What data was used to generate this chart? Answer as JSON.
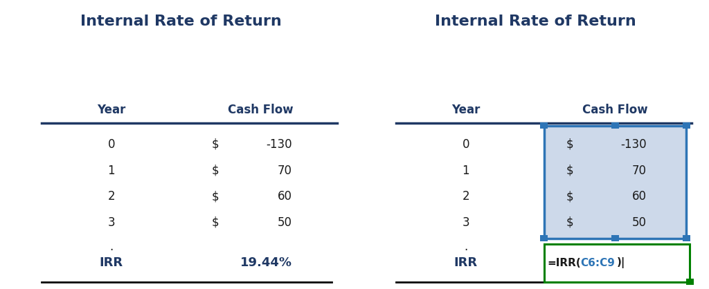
{
  "title": "Internal Rate of Return",
  "title_color": "#1F3864",
  "title_fontsize": 16,
  "header_year": "Year",
  "header_cashflow": "Cash Flow",
  "header_color": "#1F3864",
  "header_fontsize": 12,
  "years": [
    "0",
    "1",
    "2",
    "3"
  ],
  "cashflows": [
    "-130",
    "70",
    "60",
    "50"
  ],
  "irr_label": "IRR",
  "irr_value_left": "19.44%",
  "data_color": "#1a1a1a",
  "blue_color": "#1F3864",
  "green_color": "#008000",
  "cell_highlight_color": "#cdd9ea",
  "cell_border_color": "#2E75B6",
  "formula_box_color": "#008000",
  "irr_bold_color": "#1F3864",
  "separator_line_color": "#1F3864",
  "bottom_line_color": "#000000",
  "background_color": "#ffffff",
  "data_fontsize": 12,
  "irr_fontsize": 13
}
